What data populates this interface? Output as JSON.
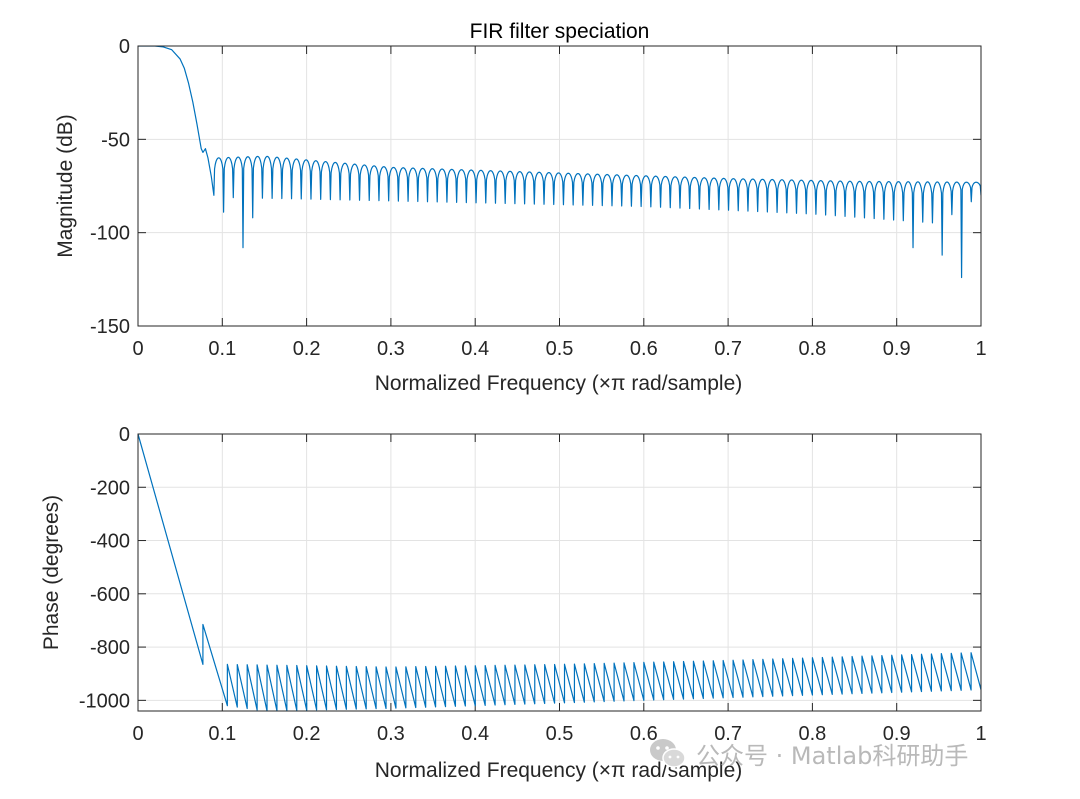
{
  "colors": {
    "series": "#0072BD",
    "axis": "#262626",
    "grid": "#e3e3e3",
    "watermark": "#b9b9b9"
  },
  "watermark": {
    "text": "公众号 · Matlab科研助手",
    "icon": "wechat-icon"
  },
  "chart_data": [
    {
      "type": "line",
      "title": "FIR filter speciation",
      "xlabel": "Normalized Frequency  (×π rad/sample)",
      "ylabel": "Magnitude (dB)",
      "xlim": [
        0,
        1
      ],
      "ylim": [
        -150,
        0
      ],
      "xticks": [
        0,
        0.1,
        0.2,
        0.3,
        0.4,
        0.5,
        0.6,
        0.7,
        0.8,
        0.9,
        1
      ],
      "xtick_labels": [
        "0",
        "0.1",
        "0.2",
        "0.3",
        "0.4",
        "0.5",
        "0.6",
        "0.7",
        "0.8",
        "0.9",
        "1"
      ],
      "yticks": [
        0,
        -50,
        -100,
        -150
      ],
      "ytick_labels": [
        "0",
        "-50",
        "-100",
        "-150"
      ],
      "grid": true,
      "series": [
        {
          "name": "magnitude",
          "passband": {
            "x": [
              0,
              0.02,
              0.03,
              0.04,
              0.05,
              0.055,
              0.06,
              0.065,
              0.07,
              0.075
            ],
            "y": [
              0,
              0,
              -0.5,
              -2,
              -7,
              -12,
              -20,
              -30,
              -42,
              -55
            ]
          },
          "transition_bump": {
            "x": [
              0.075,
              0.077,
              0.08,
              0.083,
              0.087,
              0.09
            ],
            "y": [
              -55,
              -57,
              -55,
              -60,
              -70,
              -80
            ]
          },
          "sidelobe_start_x": 0.09,
          "sidelobe_end_x": 1.0,
          "sidelobe_count": 79,
          "sidelobe_peaks": {
            "x": [
              0.09,
              0.15,
              0.3,
              0.5,
              0.7,
              0.85,
              1.0
            ],
            "y": [
              -60,
              -59,
              -65,
              -68,
              -71,
              -72.5,
              -73
            ]
          },
          "sidelobe_nulls": {
            "x": [
              0.09,
              0.2,
              0.4,
              0.6,
              0.8,
              0.95,
              1.0
            ],
            "y": [
              -81,
              -82,
              -84,
              -86,
              -90,
              -95,
              -80
            ]
          },
          "deep_nulls": [
            {
              "x": 0.105,
              "y": -89
            },
            {
              "x": 0.123,
              "y": -108
            },
            {
              "x": 0.139,
              "y": -92
            },
            {
              "x": 0.92,
              "y": -108
            },
            {
              "x": 0.95,
              "y": -112
            },
            {
              "x": 0.977,
              "y": -124
            }
          ]
        }
      ]
    },
    {
      "type": "line",
      "xlabel": "Normalized Frequency  (×π rad/sample)",
      "ylabel": "Phase (degrees)",
      "xlim": [
        0,
        1
      ],
      "ylim": [
        -1040,
        0
      ],
      "xticks": [
        0,
        0.1,
        0.2,
        0.3,
        0.4,
        0.5,
        0.6,
        0.7,
        0.8,
        0.9,
        1
      ],
      "xtick_labels": [
        "0",
        "0.1",
        "0.2",
        "0.3",
        "0.4",
        "0.5",
        "0.6",
        "0.7",
        "0.8",
        "0.9",
        "1"
      ],
      "yticks": [
        0,
        -200,
        -400,
        -600,
        -800,
        -1000
      ],
      "ytick_labels": [
        "0",
        "-200",
        "-400",
        "-600",
        "-800",
        "-1000"
      ],
      "grid": true,
      "series": [
        {
          "name": "phase",
          "linear_segment": {
            "x": [
              0,
              0.077
            ],
            "y": [
              0,
              -865
            ]
          },
          "jump": {
            "x": 0.077,
            "y": -715
          },
          "segment2_end": {
            "x": 0.106,
            "y": -1020
          },
          "sawtooth_start_x": 0.106,
          "sawtooth_end_x": 1.0,
          "sawtooth_count": 76,
          "sawtooth_tops": {
            "x": [
              0.106,
              0.3,
              0.5,
              0.7,
              0.9,
              1.0
            ],
            "y": [
              -865,
              -875,
              -865,
              -850,
              -830,
              -820
            ]
          },
          "sawtooth_bottoms": {
            "x": [
              0.106,
              0.15,
              0.3,
              0.5,
              0.7,
              0.9,
              1.0
            ],
            "y": [
              -1020,
              -1040,
              -1030,
              -1010,
              -990,
              -970,
              -960
            ]
          }
        }
      ]
    }
  ]
}
